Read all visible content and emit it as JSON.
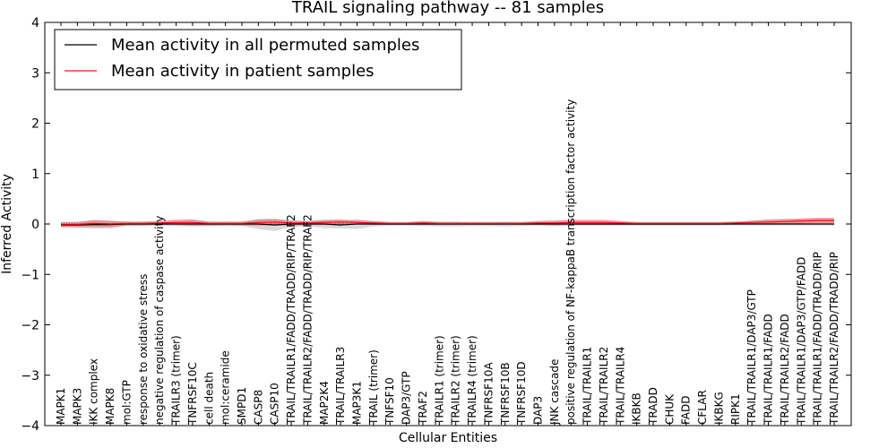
{
  "chart_data": {
    "type": "line",
    "title": "TRAIL signaling pathway -- 81 samples",
    "xlabel": "Cellular Entities",
    "ylabel": "Inferred Activity",
    "ylim": [
      -4,
      4
    ],
    "yticks": [
      "−4",
      "−3",
      "−2",
      "−1",
      "0",
      "1",
      "2",
      "3",
      "4"
    ],
    "grid": false,
    "legend_position": "top-left",
    "colors": {
      "permuted": "#000000",
      "patient": "#e8111b",
      "patient_band": "#e37979",
      "permuted_band": "#bfbfbf"
    },
    "categories": [
      "MAPK1",
      "MAPK3",
      "IKK complex",
      "MAPK8",
      "mol:GTP",
      "response to oxidative stress",
      "negative regulation of caspase activity",
      "TRAILR3 (trimer)",
      "TNFRSF10C",
      "cell death",
      "mol:ceramide",
      "SMPD1",
      "CASP8",
      "CASP10",
      "TRAIL/TRAILR1/FADD/TRADD/RIP/TRAF2",
      "TRAIL/TRAILR2/FADD/TRADD/RIP/TRAF2",
      "MAP2K4",
      "TRAIL/TRAILR3",
      "MAP3K1",
      "TRAIL (trimer)",
      "TNFSF10",
      "DAP3/GTP",
      "TRAF2",
      "TRAILR1 (trimer)",
      "TRAILR2 (trimer)",
      "TRAILR4 (trimer)",
      "TNFRSF10A",
      "TNFRSF10B",
      "TNFRSF10D",
      "DAP3",
      "JNK cascade",
      "positive regulation of NF-kappaB transcription factor activity",
      "TRAIL/TRAILR1",
      "TRAIL/TRAILR2",
      "TRAIL/TRAILR4",
      "IKBKB",
      "TRADD",
      "CHUK",
      "FADD",
      "CFLAR",
      "IKBKG",
      "RIPK1",
      "TRAIL/TRAILR1/DAP3/GTP",
      "TRAIL/TRAILR1/FADD",
      "TRAIL/TRAILR2/FADD",
      "TRAIL/TRAILR1/DAP3/GTP/FADD",
      "TRAIL/TRAILR1/FADD/TRADD/RIP",
      "TRAIL/TRAILR2/FADD/TRADD/RIP"
    ],
    "series": [
      {
        "name": "Mean activity in all permuted samples",
        "values": [
          -0.02,
          -0.02,
          -0.01,
          -0.01,
          0.0,
          0.0,
          0.0,
          0.0,
          0.0,
          0.0,
          0.0,
          0.0,
          0.0,
          -0.02,
          0.0,
          0.0,
          0.0,
          -0.02,
          0.0,
          0.0,
          0.0,
          0.0,
          0.0,
          0.0,
          0.0,
          0.0,
          0.0,
          0.0,
          0.0,
          0.0,
          0.0,
          0.0,
          0.0,
          0.0,
          0.0,
          0.0,
          0.0,
          0.0,
          0.0,
          0.0,
          0.0,
          0.0,
          0.0,
          0.0,
          0.0,
          0.0,
          0.0,
          0.0
        ],
        "spread": [
          0.05,
          0.06,
          0.08,
          0.08,
          0.04,
          0.03,
          0.03,
          0.04,
          0.05,
          0.04,
          0.03,
          0.04,
          0.1,
          0.12,
          0.06,
          0.05,
          0.08,
          0.07,
          0.1,
          0.05,
          0.03,
          0.03,
          0.04,
          0.05,
          0.05,
          0.04,
          0.04,
          0.05,
          0.04,
          0.03,
          0.03,
          0.03,
          0.03,
          0.03,
          0.03,
          0.03,
          0.03,
          0.03,
          0.03,
          0.03,
          0.03,
          0.03,
          0.03,
          0.03,
          0.03,
          0.03,
          0.03,
          0.03
        ]
      },
      {
        "name": "Mean activity in patient samples",
        "values": [
          -0.01,
          -0.01,
          0.01,
          0.0,
          0.01,
          0.01,
          0.02,
          0.03,
          0.03,
          0.01,
          0.01,
          0.01,
          0.03,
          0.04,
          0.02,
          0.02,
          0.03,
          0.04,
          0.03,
          0.02,
          0.01,
          0.01,
          0.02,
          0.01,
          0.01,
          0.01,
          0.01,
          0.01,
          0.01,
          0.02,
          0.02,
          0.03,
          0.03,
          0.03,
          0.02,
          0.01,
          0.01,
          0.01,
          0.01,
          0.01,
          0.01,
          0.02,
          0.03,
          0.04,
          0.05,
          0.06,
          0.07,
          0.07
        ],
        "spread": [
          0.05,
          0.05,
          0.07,
          0.06,
          0.04,
          0.04,
          0.04,
          0.05,
          0.06,
          0.04,
          0.04,
          0.04,
          0.06,
          0.06,
          0.05,
          0.04,
          0.05,
          0.05,
          0.04,
          0.04,
          0.03,
          0.03,
          0.04,
          0.03,
          0.03,
          0.03,
          0.03,
          0.03,
          0.03,
          0.04,
          0.05,
          0.05,
          0.05,
          0.05,
          0.04,
          0.03,
          0.03,
          0.03,
          0.03,
          0.03,
          0.03,
          0.03,
          0.04,
          0.05,
          0.05,
          0.05,
          0.05,
          0.05
        ]
      }
    ]
  }
}
